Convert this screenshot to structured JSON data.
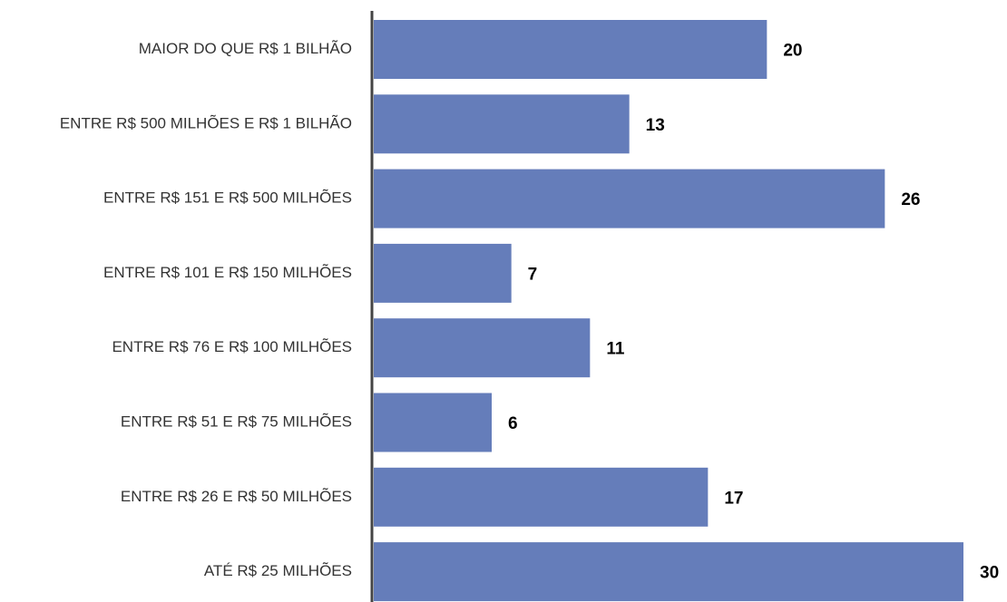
{
  "chart_data": {
    "type": "barh",
    "categories": [
      "MAIOR DO QUE R$ 1 BILHÃO",
      "ENTRE R$ 500 MILHÕES E R$ 1 BILHÃO",
      "ENTRE R$ 151 E R$ 500 MILHÕES",
      "ENTRE R$ 101 E R$ 150 MILHÕES",
      "ENTRE R$ 76 E R$ 100 MILHÕES",
      "ENTRE R$ 51 E R$ 75 MILHÕES",
      "ENTRE R$ 26 E R$ 50 MILHÕES",
      "ATÉ R$ 25 MILHÕES"
    ],
    "values": [
      20,
      13,
      26,
      7,
      11,
      6,
      17,
      30
    ],
    "color": "#657dba"
  }
}
